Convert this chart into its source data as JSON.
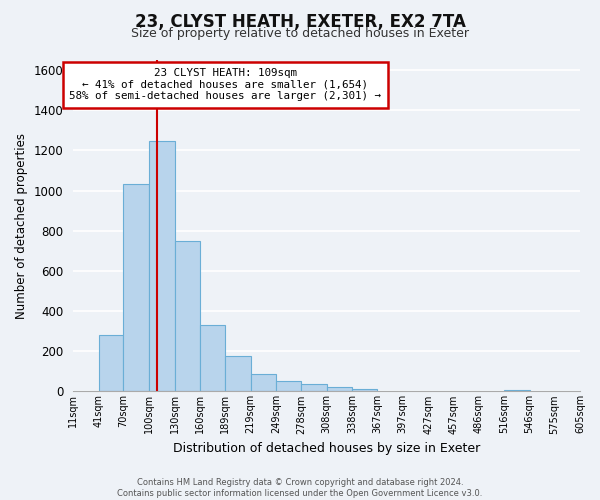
{
  "title": "23, CLYST HEATH, EXETER, EX2 7TA",
  "subtitle": "Size of property relative to detached houses in Exeter",
  "xlabel": "Distribution of detached houses by size in Exeter",
  "ylabel": "Number of detached properties",
  "bar_values": [
    0,
    280,
    1035,
    1245,
    750,
    330,
    175,
    85,
    50,
    35,
    20,
    10,
    0,
    0,
    0,
    0,
    0,
    5,
    0,
    0
  ],
  "bin_edges": [
    11,
    41,
    70,
    100,
    130,
    160,
    189,
    219,
    249,
    278,
    308,
    338,
    367,
    397,
    427,
    457,
    486,
    516,
    546,
    575,
    605
  ],
  "bin_labels": [
    "11sqm",
    "41sqm",
    "70sqm",
    "100sqm",
    "130sqm",
    "160sqm",
    "189sqm",
    "219sqm",
    "249sqm",
    "278sqm",
    "308sqm",
    "338sqm",
    "367sqm",
    "397sqm",
    "427sqm",
    "457sqm",
    "486sqm",
    "516sqm",
    "546sqm",
    "575sqm",
    "605sqm"
  ],
  "bar_color": "#b8d4ec",
  "bar_edge_color": "#6aaed6",
  "vline_x": 109,
  "vline_color": "#cc0000",
  "ylim": [
    0,
    1650
  ],
  "yticks": [
    0,
    200,
    400,
    600,
    800,
    1000,
    1200,
    1400,
    1600
  ],
  "annotation_title": "23 CLYST HEATH: 109sqm",
  "annotation_line1": "← 41% of detached houses are smaller (1,654)",
  "annotation_line2": "58% of semi-detached houses are larger (2,301) →",
  "annotation_box_color": "#ffffff",
  "annotation_box_edge": "#cc0000",
  "footer_line1": "Contains HM Land Registry data © Crown copyright and database right 2024.",
  "footer_line2": "Contains public sector information licensed under the Open Government Licence v3.0.",
  "bg_color": "#eef2f7",
  "grid_color": "#ffffff"
}
